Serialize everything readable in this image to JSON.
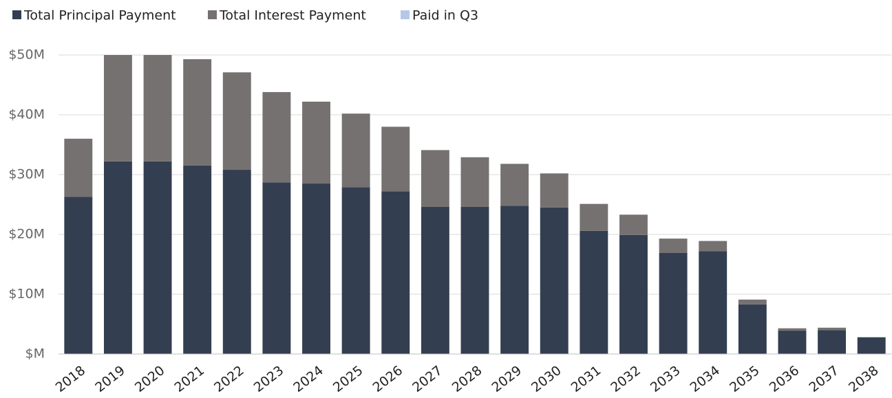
{
  "chart_data": {
    "type": "stacked_bar",
    "categories": [
      "2018",
      "2019",
      "2020",
      "2021",
      "2022",
      "2023",
      "2024",
      "2025",
      "2026",
      "2027",
      "2028",
      "2029",
      "2030",
      "2031",
      "2032",
      "2033",
      "2034",
      "2035",
      "2036",
      "2037",
      "2038"
    ],
    "series": [
      {
        "name": "Total Principal Payment",
        "color": "#333f50",
        "values": [
          26.3,
          32.2,
          32.2,
          31.5,
          30.8,
          28.7,
          28.5,
          27.9,
          27.2,
          24.6,
          24.6,
          24.8,
          24.5,
          20.6,
          19.9,
          16.9,
          17.2,
          8.3,
          3.9,
          4.0,
          2.8
        ]
      },
      {
        "name": "Total Interest Payment",
        "color": "#767171",
        "values": [
          9.7,
          17.8,
          17.8,
          17.8,
          16.3,
          15.1,
          13.7,
          12.3,
          10.8,
          9.5,
          8.3,
          7.0,
          5.7,
          4.5,
          3.4,
          2.4,
          1.7,
          0.8,
          0.4,
          0.4,
          0
        ]
      },
      {
        "name": "Paid in Q3",
        "color": "#b4c7e7",
        "values": [
          null,
          null,
          null,
          null,
          null,
          null,
          null,
          null,
          null,
          null,
          null,
          null,
          null,
          null,
          null,
          null,
          null,
          null,
          null,
          null,
          null
        ]
      }
    ],
    "ylim": [
      0,
      50
    ],
    "yticks": [
      {
        "value": 0,
        "label": "$M"
      },
      {
        "value": 10,
        "label": "$10M"
      },
      {
        "value": 20,
        "label": "$20M"
      },
      {
        "value": 30,
        "label": "$30M"
      },
      {
        "value": 40,
        "label": "$40M"
      },
      {
        "value": 50,
        "label": "$50M"
      }
    ],
    "grid": true
  }
}
